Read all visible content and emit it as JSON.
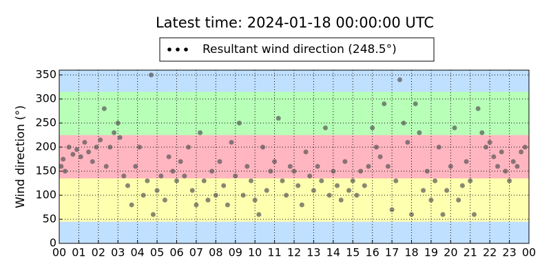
{
  "chart_data": {
    "type": "scatter",
    "title": "Latest time: 2024-01-18 00:00:00 UTC",
    "ylabel": "Wind direction (°)",
    "xlim": [
      0,
      24
    ],
    "ylim": [
      0,
      360
    ],
    "xticks": [
      {
        "value": 0,
        "label": "00"
      },
      {
        "value": 1,
        "label": "01"
      },
      {
        "value": 2,
        "label": "02"
      },
      {
        "value": 3,
        "label": "03"
      },
      {
        "value": 4,
        "label": "04"
      },
      {
        "value": 5,
        "label": "05"
      },
      {
        "value": 6,
        "label": "06"
      },
      {
        "value": 7,
        "label": "07"
      },
      {
        "value": 8,
        "label": "08"
      },
      {
        "value": 9,
        "label": "09"
      },
      {
        "value": 10,
        "label": "10"
      },
      {
        "value": 11,
        "label": "11"
      },
      {
        "value": 12,
        "label": "12"
      },
      {
        "value": 13,
        "label": "13"
      },
      {
        "value": 14,
        "label": "14"
      },
      {
        "value": 15,
        "label": "15"
      },
      {
        "value": 16,
        "label": "16"
      },
      {
        "value": 17,
        "label": "17"
      },
      {
        "value": 18,
        "label": "18"
      },
      {
        "value": 19,
        "label": "19"
      },
      {
        "value": 20,
        "label": "20"
      },
      {
        "value": 21,
        "label": "21"
      },
      {
        "value": 22,
        "label": "22"
      },
      {
        "value": 23,
        "label": "23"
      },
      {
        "value": 24,
        "label": "00"
      }
    ],
    "yticks": [
      0,
      50,
      100,
      150,
      200,
      250,
      300,
      350
    ],
    "grid": true,
    "bands": [
      {
        "from": 0,
        "to": 45,
        "color": "#c0e0ff"
      },
      {
        "from": 45,
        "to": 135,
        "color": "#ffffb0"
      },
      {
        "from": 135,
        "to": 225,
        "color": "#ffb6c0"
      },
      {
        "from": 225,
        "to": 315,
        "color": "#b8ffb8"
      },
      {
        "from": 315,
        "to": 360,
        "color": "#c0e0ff"
      }
    ],
    "series": [
      {
        "name": "Resultant wind direction (248.5°)",
        "color": "#555555",
        "legend_color": "#000000",
        "x": [
          0.1,
          0.2,
          0.3,
          0.5,
          0.7,
          0.9,
          1.1,
          1.3,
          1.5,
          1.7,
          1.9,
          2.1,
          2.3,
          2.4,
          2.6,
          2.8,
          3.0,
          3.1,
          3.3,
          3.5,
          3.7,
          3.9,
          4.1,
          4.3,
          4.5,
          4.7,
          4.8,
          5.0,
          5.2,
          5.4,
          5.6,
          5.8,
          6.0,
          6.2,
          6.4,
          6.6,
          6.8,
          7.0,
          7.2,
          7.4,
          7.6,
          7.8,
          8.0,
          8.2,
          8.4,
          8.6,
          8.8,
          9.0,
          9.2,
          9.4,
          9.6,
          9.8,
          10.0,
          10.2,
          10.4,
          10.6,
          10.8,
          11.0,
          11.2,
          11.4,
          11.6,
          11.8,
          12.0,
          12.2,
          12.4,
          12.6,
          12.8,
          13.0,
          13.2,
          13.4,
          13.6,
          13.8,
          14.0,
          14.2,
          14.4,
          14.6,
          14.8,
          15.0,
          15.2,
          15.4,
          15.6,
          15.8,
          16.0,
          16.2,
          16.4,
          16.6,
          16.8,
          17.0,
          17.2,
          17.4,
          17.6,
          17.8,
          18.0,
          18.2,
          18.4,
          18.6,
          18.8,
          19.0,
          19.2,
          19.4,
          19.6,
          19.8,
          20.0,
          20.2,
          20.4,
          20.6,
          20.8,
          21.0,
          21.2,
          21.4,
          21.6,
          21.8,
          22.0,
          22.2,
          22.4,
          22.6,
          22.8,
          23.0,
          23.2,
          23.4,
          23.6,
          23.8
        ],
        "values": [
          160,
          175,
          150,
          200,
          185,
          195,
          180,
          210,
          190,
          170,
          200,
          215,
          280,
          160,
          200,
          230,
          250,
          220,
          140,
          120,
          80,
          160,
          200,
          100,
          130,
          350,
          60,
          110,
          140,
          90,
          180,
          150,
          130,
          170,
          140,
          200,
          110,
          80,
          230,
          130,
          90,
          150,
          100,
          170,
          120,
          80,
          210,
          140,
          250,
          100,
          160,
          130,
          90,
          60,
          200,
          110,
          150,
          170,
          260,
          130,
          100,
          160,
          150,
          120,
          80,
          190,
          140,
          110,
          160,
          130,
          240,
          100,
          150,
          120,
          90,
          170,
          110,
          130,
          100,
          150,
          120,
          160,
          240,
          200,
          180,
          290,
          160,
          70,
          130,
          340,
          250,
          210,
          60,
          290,
          230,
          110,
          150,
          90,
          130,
          200,
          60,
          110,
          160,
          240,
          90,
          120,
          170,
          130,
          60,
          280,
          230,
          200,
          210,
          180,
          160,
          190,
          150,
          130,
          170,
          160,
          190,
          200
        ]
      }
    ]
  }
}
